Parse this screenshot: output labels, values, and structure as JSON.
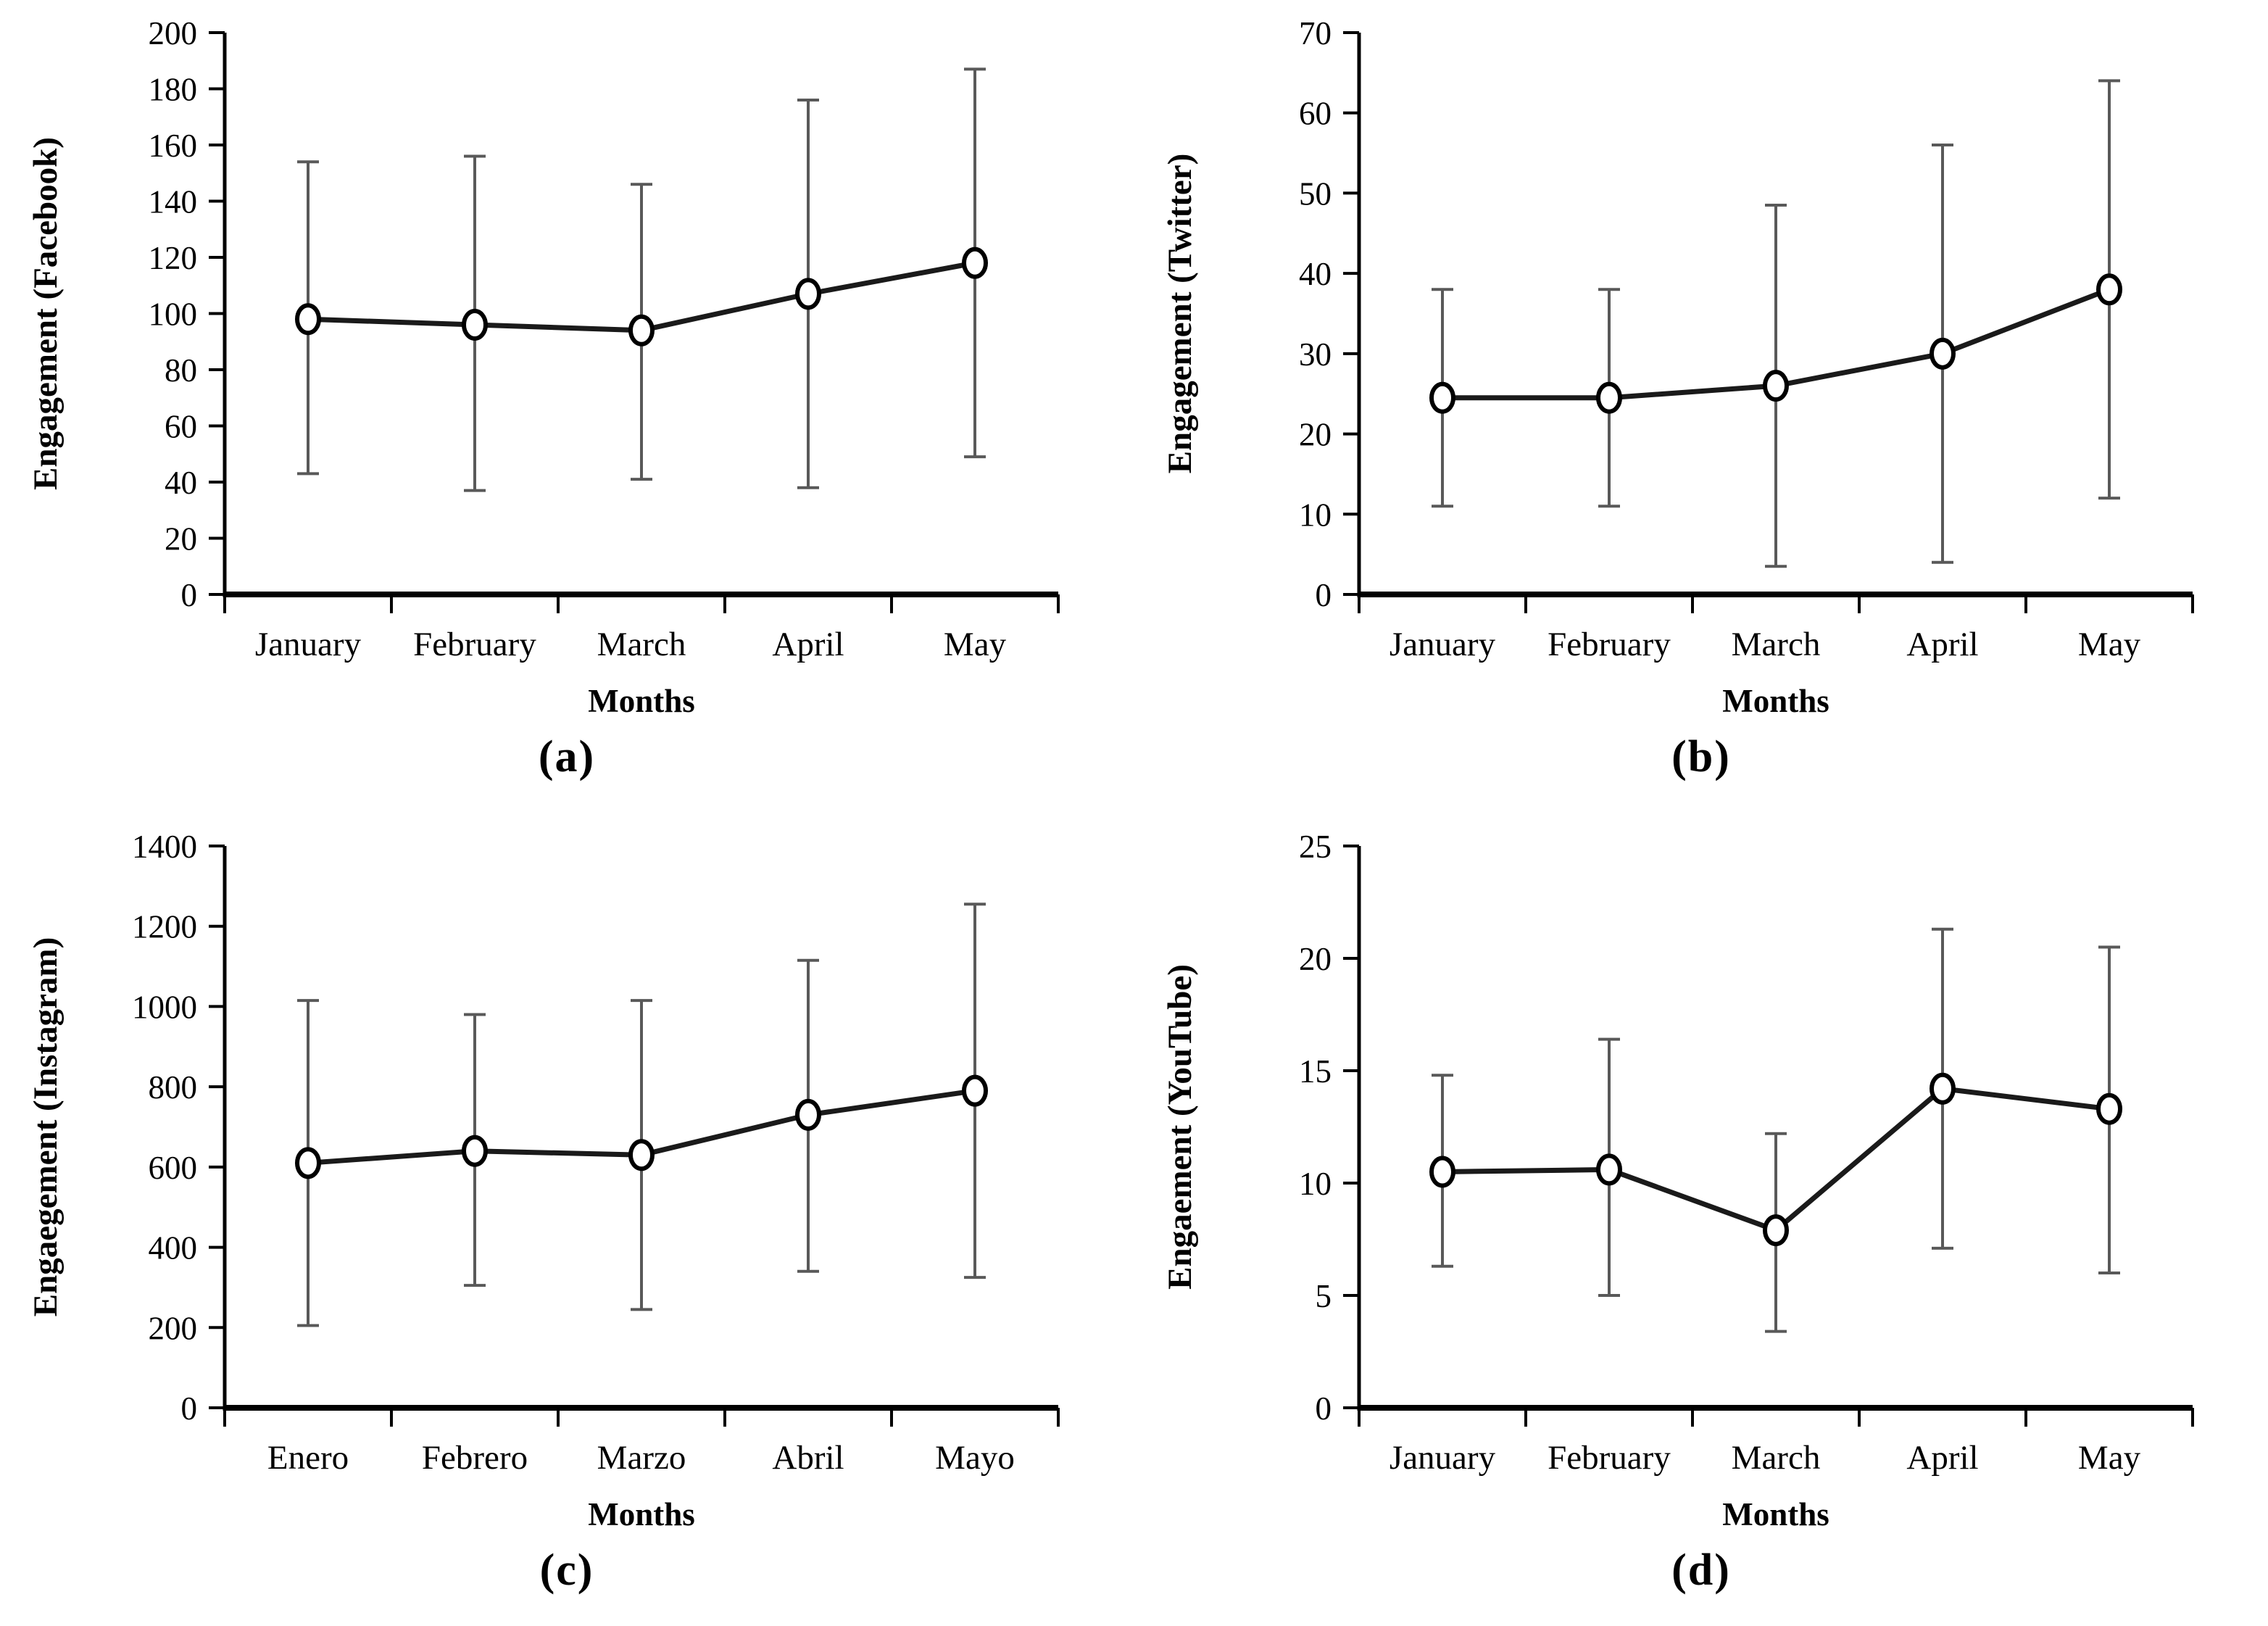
{
  "style": {
    "background": "#ffffff",
    "text_color": "#000000",
    "line_color": "#1a1a1a",
    "error_bar_color": "#595959",
    "marker_fill": "#ffffff",
    "marker_stroke": "#000000"
  },
  "chart_data": [
    {
      "type": "line",
      "panel_label": "(a)",
      "title": "",
      "xlabel": "Months",
      "ylabel": "Engagement (Facebook)",
      "categories": [
        "January",
        "February",
        "March",
        "April",
        "May"
      ],
      "series": [
        {
          "name": "Engagement (Facebook)",
          "values": [
            98,
            96,
            94,
            107,
            118
          ],
          "error_low": [
            43,
            37,
            41,
            38,
            49
          ],
          "error_high": [
            154,
            156,
            146,
            176,
            187
          ]
        }
      ],
      "ylim": [
        0,
        200
      ],
      "ytick_step": 20,
      "grid": false,
      "legend": "none"
    },
    {
      "type": "line",
      "panel_label": "(b)",
      "title": "",
      "xlabel": "Months",
      "ylabel": "Engagement (Twitter)",
      "categories": [
        "January",
        "February",
        "March",
        "April",
        "May"
      ],
      "series": [
        {
          "name": "Engagement (Twitter)",
          "values": [
            24.5,
            24.5,
            26,
            30,
            38
          ],
          "error_low": [
            11,
            11,
            3.5,
            4,
            12
          ],
          "error_high": [
            38,
            38,
            48.5,
            56,
            64
          ]
        }
      ],
      "ylim": [
        0,
        70
      ],
      "ytick_step": 10,
      "grid": false,
      "legend": "none"
    },
    {
      "type": "line",
      "panel_label": "(c)",
      "title": "",
      "xlabel": "Months",
      "ylabel": "Engaegement (Instagram)",
      "categories": [
        "Enero",
        "Febrero",
        "Marzo",
        "Abril",
        "Mayo"
      ],
      "series": [
        {
          "name": "Engaegement (Instagram)",
          "values": [
            610,
            640,
            630,
            730,
            790
          ],
          "error_low": [
            205,
            305,
            245,
            340,
            325
          ],
          "error_high": [
            1015,
            980,
            1015,
            1115,
            1255
          ]
        }
      ],
      "ylim": [
        0,
        1400
      ],
      "ytick_step": 200,
      "grid": false,
      "legend": "none"
    },
    {
      "type": "line",
      "panel_label": "(d)",
      "title": "",
      "xlabel": "Months",
      "ylabel": "Engaement (YouTube)",
      "categories": [
        "January",
        "February",
        "March",
        "April",
        "May"
      ],
      "series": [
        {
          "name": "Engaement (YouTube)",
          "values": [
            10.5,
            10.6,
            7.9,
            14.2,
            13.3
          ],
          "error_low": [
            6.3,
            5,
            3.4,
            7.1,
            6
          ],
          "error_high": [
            14.8,
            16.4,
            12.2,
            21.3,
            20.5
          ]
        }
      ],
      "ylim": [
        0,
        25
      ],
      "ytick_step": 5,
      "grid": false,
      "legend": "none"
    }
  ]
}
